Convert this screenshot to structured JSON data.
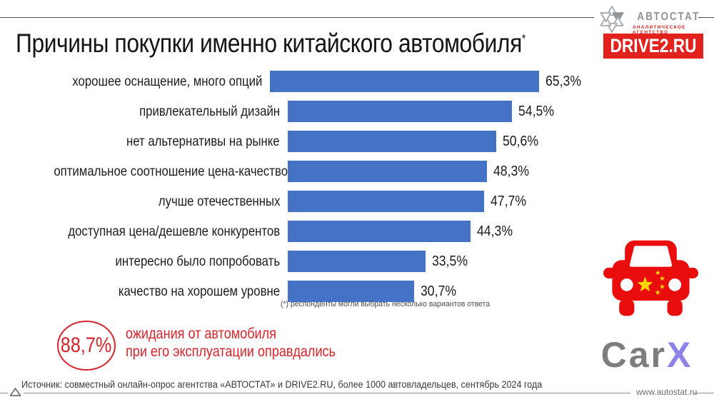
{
  "header": {
    "title": "Причины покупки именно китайского автомобиля",
    "title_asterisk": "*"
  },
  "logos": {
    "autostat": {
      "name": "АВТОСТАТ",
      "subtitle": "АНАЛИТИЧЕСКОЕ АГЕНТСТВО"
    },
    "drive2": {
      "label": "DRIVE2.RU"
    },
    "carx": {
      "part1": "Car",
      "part2": "X"
    }
  },
  "chart_data": {
    "type": "bar",
    "orientation": "horizontal",
    "categories": [
      "хорошее оснащение, много опций",
      "привлекательный дизайн",
      "нет альтернативы на рынке",
      "оптимальное соотношение цена-качество",
      "лучше отечественных",
      "доступная цена/дешевле конкурентов",
      "интересно было попробовать",
      "качество на хорошем уровне"
    ],
    "values": [
      65.3,
      54.5,
      50.6,
      48.3,
      47.7,
      44.3,
      33.5,
      30.7
    ],
    "value_labels": [
      "65,3%",
      "54,5%",
      "50,6%",
      "48,3%",
      "47,7%",
      "44,3%",
      "33,5%",
      "30,7%"
    ],
    "xlim": [
      0,
      70
    ],
    "bar_color": "#4472c4",
    "grid": false,
    "legend": false
  },
  "footnote": "(*) респонденты могли выбрать несколько вариантов ответа",
  "highlight": {
    "value": "88,7%",
    "line1": "ожидания от автомобиля",
    "line2": "при его эксплуатации оправдались"
  },
  "footer": {
    "source": "Источник: совместный онлайн-опрос агентства «АВТОСТАТ» и DRIVE2.RU, более 1000 автовладельцев, сентябрь 2024 года",
    "website": "www.autostat.ru"
  },
  "colors": {
    "bar_blue": "#4472c4",
    "accent_red": "#e2231d",
    "highlight_red": "#d8242b",
    "car_red": "#ea0d0d",
    "star_yellow": "#ffd500",
    "carx_gray": "#7d7d7d",
    "carx_x_purple": "#8d82e8"
  }
}
